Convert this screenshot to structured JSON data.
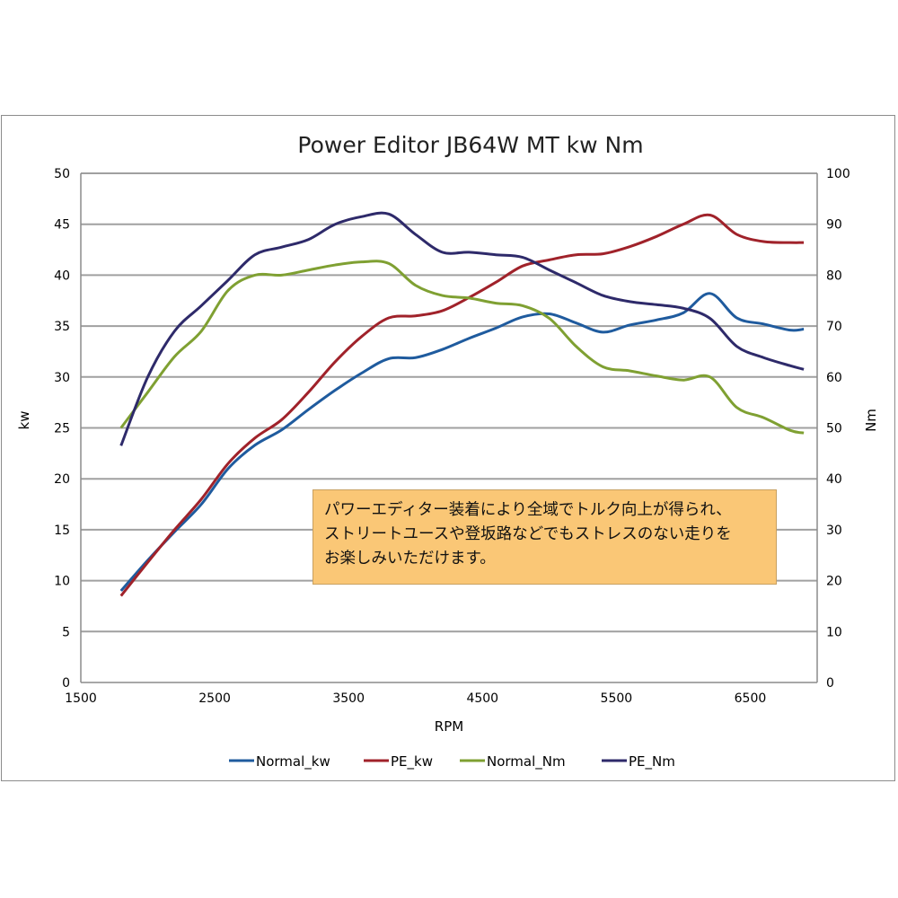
{
  "chart_data": {
    "type": "line",
    "title": "Power Editor  JB64W MT  kw Nm",
    "xlabel": "RPM",
    "ylabel": "kw",
    "y2label": "Nm",
    "xlim": [
      1500,
      7000
    ],
    "ylim": [
      0,
      50
    ],
    "y2lim": [
      0,
      100
    ],
    "xticks": [
      1500,
      2500,
      3500,
      4500,
      5500,
      6500
    ],
    "yticks": [
      0,
      5,
      10,
      15,
      20,
      25,
      30,
      35,
      40,
      45,
      50
    ],
    "y2ticks": [
      0,
      10,
      20,
      30,
      40,
      50,
      60,
      70,
      80,
      90,
      100
    ],
    "grid": "horizontal",
    "legend": "bottom",
    "x": [
      1800,
      2000,
      2200,
      2400,
      2600,
      2800,
      3000,
      3200,
      3400,
      3600,
      3800,
      4000,
      4200,
      4400,
      4600,
      4800,
      5000,
      5200,
      5400,
      5600,
      5800,
      6000,
      6200,
      6400,
      6600,
      6800,
      6900
    ],
    "series": [
      {
        "name": "Normal_kw",
        "axis": "left",
        "color": "#1f5b9e",
        "values": [
          9.0,
          12,
          14.8,
          17.5,
          21,
          23.3,
          24.8,
          26.8,
          28.7,
          30.4,
          31.8,
          31.9,
          32.7,
          33.8,
          34.8,
          35.9,
          36.2,
          35.3,
          34.4,
          35.1,
          35.6,
          36.3,
          38.2,
          35.8,
          35.2,
          34.6,
          34.7
        ]
      },
      {
        "name": "PE_kw",
        "axis": "left",
        "color": "#a0222a",
        "values": [
          8.5,
          11.8,
          15,
          18,
          21.5,
          24,
          25.8,
          28.5,
          31.5,
          34,
          35.8,
          36,
          36.5,
          37.8,
          39.3,
          40.9,
          41.5,
          42,
          42.1,
          42.8,
          43.8,
          45,
          45.9,
          44,
          43.3,
          43.2,
          43.2
        ]
      },
      {
        "name": "Normal_Nm",
        "axis": "right",
        "color": "#7fa032",
        "values": [
          50,
          57,
          64,
          69,
          77,
          80,
          80,
          81,
          82,
          82.6,
          82.3,
          78,
          76,
          75.5,
          74.5,
          74,
          71.5,
          66,
          62,
          61.2,
          60.2,
          59.4,
          60,
          54,
          52,
          49.5,
          49
        ]
      },
      {
        "name": "PE_Nm",
        "axis": "right",
        "color": "#2e2a6a",
        "values": [
          46.5,
          60,
          69,
          74,
          79,
          84,
          85.5,
          87,
          90,
          91.5,
          92,
          88,
          84.5,
          84.5,
          84,
          83.5,
          81,
          78.5,
          76,
          74.8,
          74.2,
          73.5,
          71.5,
          66,
          63.8,
          62.2,
          61.5
        ]
      }
    ],
    "annotation": {
      "lines": [
        "パワーエディター装着により全域でトルク向上が得られ、",
        "ストリートユースや登坂路などでもストレスのない走りを",
        "お楽しみいただけます。"
      ],
      "background": "#fac776"
    }
  }
}
